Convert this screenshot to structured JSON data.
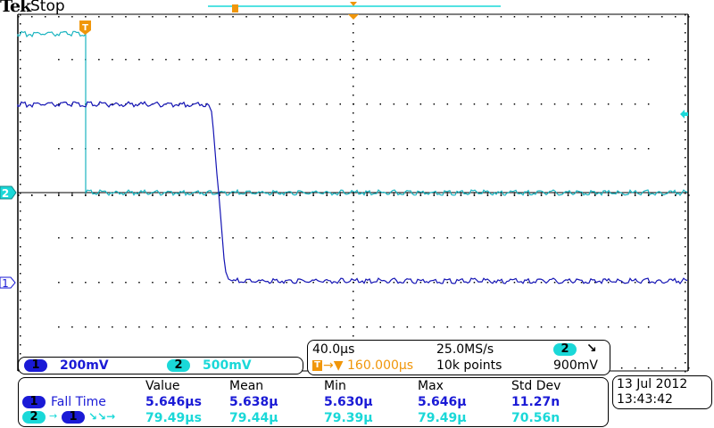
{
  "header": {
    "brand": "Tek",
    "acquisition_state": "Stop"
  },
  "colors": {
    "ch1": "#1a1ad6",
    "ch2": "#1ad8d8",
    "trigger": "#f0960a",
    "graticule": "#000000"
  },
  "graticule": {
    "h_divisions": 10,
    "v_divisions": 8
  },
  "markers": {
    "trigger_position_label": "T",
    "ch2_marker_label": "2",
    "ch1_marker_label": "1",
    "trigger_level_icon": "trigger-level-arrow-icon"
  },
  "channels": [
    {
      "id": "1",
      "scale": "200mV"
    },
    {
      "id": "2",
      "scale": "500mV"
    }
  ],
  "timebase": {
    "horizontal_scale": "40.0µs",
    "sample_rate": "25.0MS/s",
    "trigger_delay_prefix": "T",
    "trigger_delay": "160.000µs",
    "record_length": "10k points",
    "trigger_source": "2",
    "trigger_slope_icon": "falling-edge-icon",
    "trigger_level": "900mV"
  },
  "measurements": {
    "headers": [
      "Value",
      "Mean",
      "Min",
      "Max",
      "Std Dev"
    ],
    "rows": [
      {
        "source": "1",
        "label": "Fall Time",
        "values": [
          "5.646µs",
          "5.638µ",
          "5.630µ",
          "5.646µ",
          "11.27n"
        ]
      },
      {
        "source": "2",
        "target": "1",
        "label": "delay",
        "values": [
          "79.49µs",
          "79.44µ",
          "79.39µ",
          "79.49µ",
          "70.56n"
        ]
      }
    ]
  },
  "datetime": {
    "date": "13 Jul  2012",
    "time": "13:43:42"
  }
}
